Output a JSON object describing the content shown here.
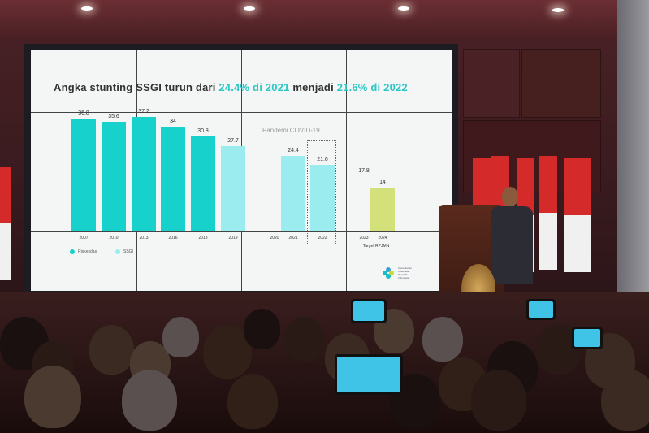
{
  "slide": {
    "title_parts": [
      "Angka stunting SSGI turun dari ",
      "24.4% di 2021",
      " menjadi ",
      "21.6% di 2022"
    ],
    "annotation": "Pandemi COVID-19",
    "target_label": "Target RPJMN",
    "legend": [
      {
        "label": "Riskesdas",
        "color": "#17d1cc"
      },
      {
        "label": "SSGI",
        "color": "#9aecef"
      }
    ],
    "logo_text": "Kementerian Kesehatan Republik Indonesia"
  },
  "chart_data": {
    "type": "bar",
    "title": "Angka stunting SSGI turun dari 24.4% di 2021 menjadi 21.6% di 2022",
    "categories": [
      "2007",
      "2010",
      "2013",
      "2016",
      "2018",
      "2019",
      "2020",
      "2021",
      "2022",
      "2023",
      "2024"
    ],
    "values": [
      36.8,
      35.6,
      37.2,
      34,
      30.8,
      27.7,
      null,
      24.4,
      21.6,
      17.8,
      14
    ],
    "value_labels": [
      "36.8",
      "35.6",
      "37.2",
      "34",
      "30.8",
      "27.7",
      "",
      "24.4",
      "21.6",
      "17.8",
      "14"
    ],
    "sources": [
      "Riskesdas",
      "Riskesdas",
      "Riskesdas",
      "Riskesdas",
      "Riskesdas",
      "SSGI",
      "",
      "SSGI",
      "SSGI",
      "",
      "Target"
    ],
    "colors": {
      "Riskesdas": "#17d1cc",
      "SSGI": "#9aecef",
      "Target": "#d4e07a"
    },
    "ylim": [
      0,
      40
    ],
    "grid": false,
    "legend_position": "bottom-left"
  }
}
